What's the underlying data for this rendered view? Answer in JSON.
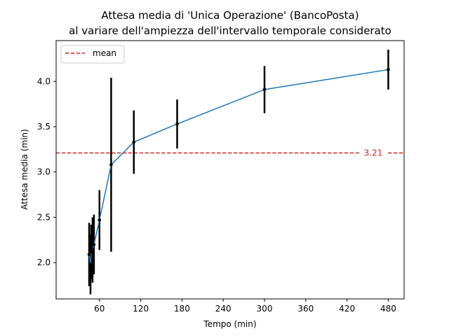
{
  "chart_data": {
    "type": "line",
    "title_line1": "Attesa media di 'Unica Operazione' (BancoPosta)",
    "title_line2": "al variare dell'ampiezza dell'intervallo temporale considerato",
    "xlabel": "Tempo (min)",
    "ylabel": "Attesa media (min)",
    "xlim": [
      -3,
      503
    ],
    "ylim": [
      1.6,
      4.45
    ],
    "x_ticks": [
      60,
      120,
      180,
      240,
      300,
      360,
      420,
      480
    ],
    "x_tick_labels": [
      "60",
      "120",
      "180",
      "240",
      "300",
      "360",
      "420",
      "480"
    ],
    "y_ticks": [
      2.0,
      2.5,
      3.0,
      3.5,
      4.0
    ],
    "y_tick_labels": [
      "2.0",
      "2.5",
      "3.0",
      "3.5",
      "4.0"
    ],
    "series": [
      {
        "color": "#1f77b4",
        "marker_color": "#000000",
        "errorbar_color": "#000000",
        "points": [
          {
            "x": 45,
            "y": 2.09,
            "err": 0.35
          },
          {
            "x": 47,
            "y": 1.98,
            "err": 0.33
          },
          {
            "x": 48,
            "y": 2.12,
            "err": 0.3
          },
          {
            "x": 50,
            "y": 2.14,
            "err": 0.36
          },
          {
            "x": 52,
            "y": 2.2,
            "err": 0.33
          },
          {
            "x": 60,
            "y": 2.47,
            "err": 0.33
          },
          {
            "x": 77,
            "y": 3.08,
            "err": 0.96
          },
          {
            "x": 110,
            "y": 3.33,
            "err": 0.35
          },
          {
            "x": 173,
            "y": 3.53,
            "err": 0.27
          },
          {
            "x": 300,
            "y": 3.91,
            "err": 0.26
          },
          {
            "x": 480,
            "y": 4.13,
            "err": 0.22
          }
        ]
      }
    ],
    "mean": {
      "value": 3.21,
      "label": "3.21",
      "legend_label": "mean",
      "color": "#d62728"
    },
    "legend": {
      "placement": "top-left",
      "entries": [
        "mean"
      ]
    },
    "grid": false
  }
}
